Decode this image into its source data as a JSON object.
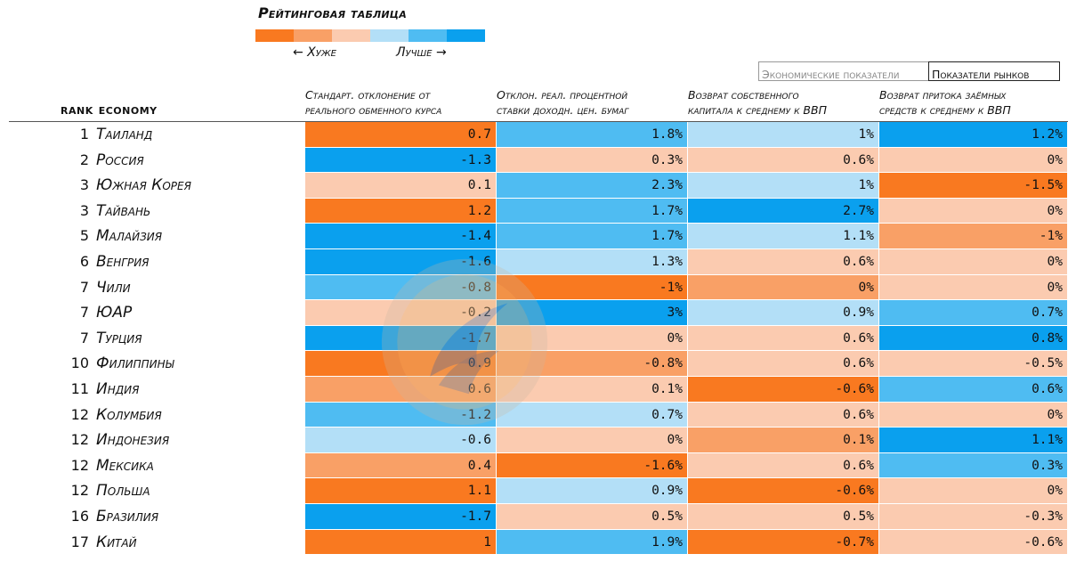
{
  "title": "Рейтинговая таблица",
  "legend": {
    "worse_label": "← Хуже",
    "better_label": "Лучше →",
    "scale_colors": [
      "#f97920",
      "#f9a066",
      "#fbcbb0",
      "#b3dff7",
      "#4fbcf2",
      "#0aa0ee"
    ]
  },
  "tabs": {
    "economic": "Экономические показатели",
    "market": "Показатели рынков"
  },
  "headers": {
    "rank": "RANK",
    "economy": "ECONOMY",
    "columns": [
      {
        "line1": "Стандарт. отклонение от",
        "line2": "реального обменного курса"
      },
      {
        "line1": "Отклон. реал. процентной",
        "line2": "ставки доходн. цен. бумаг"
      },
      {
        "line1": "Возврат собственного",
        "line2": "капитала к среднему к ВВП"
      },
      {
        "line1": "Возврат притока заёмных",
        "line2": "средств к среднему к ВВП"
      }
    ]
  },
  "colors": {
    "o": "#f97920",
    "om": "#f9a066",
    "ol": "#fbcbb0",
    "bl": "#b3dff7",
    "bm": "#4fbcf2",
    "b": "#0aa0ee"
  },
  "chart_data": {
    "type": "table",
    "title": "Рейтинговая таблица",
    "columns": [
      "Стандарт. отклонение от реального обменного курса",
      "Отклон. реал. процентной ставки доходн. цен. бумаг",
      "Возврат собственного капитала к среднему к ВВП",
      "Возврат притока заёмных средств к среднему к ВВП"
    ],
    "rows": [
      {
        "rank": "1",
        "country": "Таиланд",
        "values": [
          "0.7",
          "1.8%",
          "1%",
          "1.2%"
        ],
        "colors": [
          "o",
          "bm",
          "bl",
          "b"
        ]
      },
      {
        "rank": "2",
        "country": "Россия",
        "values": [
          "-1.3",
          "0.3%",
          "0.6%",
          "0%"
        ],
        "colors": [
          "b",
          "ol",
          "ol",
          "ol"
        ]
      },
      {
        "rank": "3",
        "country": "Южная Корея",
        "values": [
          "0.1",
          "2.3%",
          "1%",
          "-1.5%"
        ],
        "colors": [
          "ol",
          "bm",
          "bl",
          "o"
        ]
      },
      {
        "rank": "3",
        "country": "Тайвань",
        "values": [
          "1.2",
          "1.7%",
          "2.7%",
          "0%"
        ],
        "colors": [
          "o",
          "bm",
          "b",
          "ol"
        ]
      },
      {
        "rank": "5",
        "country": "Малайзия",
        "values": [
          "-1.4",
          "1.7%",
          "1.1%",
          "-1%"
        ],
        "colors": [
          "b",
          "bm",
          "bl",
          "om"
        ]
      },
      {
        "rank": "6",
        "country": "Венгрия",
        "values": [
          "-1.6",
          "1.3%",
          "0.6%",
          "0%"
        ],
        "colors": [
          "b",
          "bl",
          "ol",
          "ol"
        ]
      },
      {
        "rank": "7",
        "country": "Чили",
        "values": [
          "-0.8",
          "-1%",
          "0%",
          "0%"
        ],
        "colors": [
          "bm",
          "o",
          "om",
          "ol"
        ]
      },
      {
        "rank": "7",
        "country": "ЮАР",
        "values": [
          "-0.2",
          "3%",
          "0.9%",
          "0.7%"
        ],
        "colors": [
          "ol",
          "b",
          "bl",
          "bm"
        ]
      },
      {
        "rank": "7",
        "country": "Турция",
        "values": [
          "-1.7",
          "0%",
          "0.6%",
          "0.8%"
        ],
        "colors": [
          "b",
          "ol",
          "ol",
          "b"
        ]
      },
      {
        "rank": "10",
        "country": "Филиппины",
        "values": [
          "0.9",
          "-0.8%",
          "0.6%",
          "-0.5%"
        ],
        "colors": [
          "o",
          "om",
          "ol",
          "ol"
        ]
      },
      {
        "rank": "11",
        "country": "Индия",
        "values": [
          "0.6",
          "0.1%",
          "-0.6%",
          "0.6%"
        ],
        "colors": [
          "om",
          "ol",
          "o",
          "bm"
        ]
      },
      {
        "rank": "12",
        "country": "Колумбия",
        "values": [
          "-1.2",
          "0.7%",
          "0.6%",
          "0%"
        ],
        "colors": [
          "bm",
          "bl",
          "ol",
          "ol"
        ]
      },
      {
        "rank": "12",
        "country": "Индонезия",
        "values": [
          "-0.6",
          "0%",
          "0.1%",
          "1.1%"
        ],
        "colors": [
          "bl",
          "ol",
          "om",
          "b"
        ]
      },
      {
        "rank": "12",
        "country": "Мексика",
        "values": [
          "0.4",
          "-1.6%",
          "0.6%",
          "0.3%"
        ],
        "colors": [
          "om",
          "o",
          "ol",
          "bm"
        ]
      },
      {
        "rank": "12",
        "country": "Польша",
        "values": [
          "1.1",
          "0.9%",
          "-0.6%",
          "0%"
        ],
        "colors": [
          "o",
          "bl",
          "o",
          "ol"
        ]
      },
      {
        "rank": "16",
        "country": "Бразилия",
        "values": [
          "-1.7",
          "0.5%",
          "0.5%",
          "-0.3%"
        ],
        "colors": [
          "b",
          "ol",
          "ol",
          "ol"
        ]
      },
      {
        "rank": "17",
        "country": "Китай",
        "values": [
          "1",
          "1.9%",
          "-0.7%",
          "-0.6%"
        ],
        "colors": [
          "o",
          "bm",
          "o",
          "ol"
        ]
      }
    ]
  }
}
